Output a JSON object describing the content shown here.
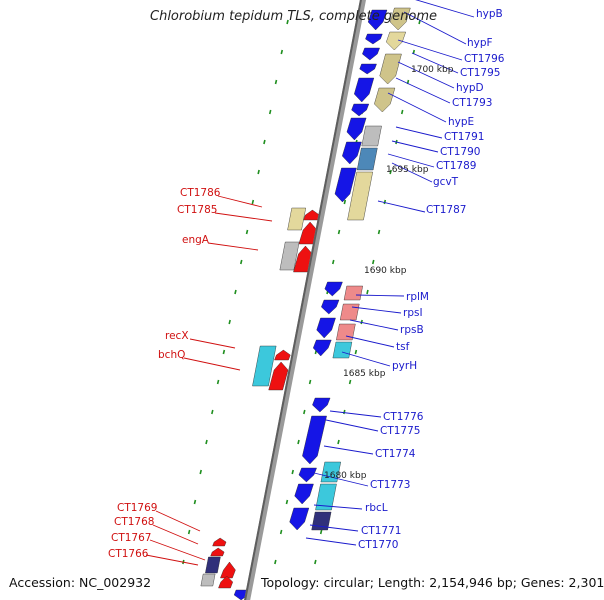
{
  "title": "Chlorobium tepidum TLS, complete genome",
  "footer": {
    "accession": "Accession: NC_002932",
    "summary": "Topology: circular; Length: 2,154,946 bp; Genes: 2,301"
  },
  "colors": {
    "backbone": "#888888",
    "forward_label": "#1a1acc",
    "reverse_label": "#d01010",
    "marker": "#1f8f1f",
    "blue_gene": "#1515e6",
    "red_gene": "#ee1111",
    "khaki": "#cfc48a",
    "tan": "#e3d89c",
    "pink": "#ee8a8a",
    "cyan": "#3cc8dc",
    "gray": "#bdbdbd",
    "steel": "#4d88b8",
    "navy": "#30307a"
  },
  "tick_labels": [
    "1700 kbp",
    "1695 kbp",
    "1690 kbp",
    "1685 kbp",
    "1680 kbp"
  ],
  "forward_labels": [
    "hypB",
    "hypF",
    "CT1796",
    "CT1795",
    "hypD",
    "CT1793",
    "hypE",
    "CT1791",
    "CT1790",
    "CT1789",
    "gcvT",
    "CT1787",
    "rplM",
    "rpsI",
    "rpsB",
    "tsf",
    "pyrH",
    "CT1776",
    "CT1775",
    "CT1774",
    "CT1773",
    "rbcL",
    "CT1771",
    "CT1770"
  ],
  "reverse_labels": [
    "CT1786",
    "CT1785",
    "engA",
    "recX",
    "bchQ",
    "CT1769",
    "CT1768",
    "CT1767",
    "CT1766"
  ]
}
